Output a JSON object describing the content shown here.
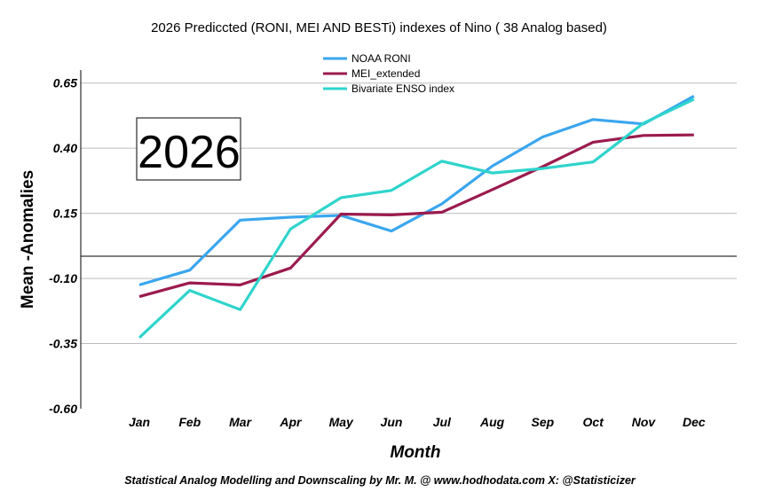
{
  "chart_data": {
    "type": "line",
    "title": "2026 Prediccted (RONI, MEI AND BESTi) indexes of Nino ( 38 Analog based)",
    "xlabel": "Month",
    "ylabel": "Mean -Anomalies",
    "categories": [
      "Jan",
      "Feb",
      "Mar",
      "Apr",
      "May",
      "Jun",
      "Jul",
      "Aug",
      "Sep",
      "Oct",
      "Nov",
      "Dec"
    ],
    "ylim": [
      -0.6,
      0.7
    ],
    "yticks": [
      "0.65",
      "0.40",
      "0.15",
      "-0.10",
      "-0.35",
      "-0.60"
    ],
    "grid": true,
    "reference_line": 0.0,
    "legend_position": "top-center",
    "annotation": "2026",
    "series": [
      {
        "name": "NOAA RONI",
        "color": "#3aa6ee",
        "values": [
          -0.125,
          -0.068,
          0.124,
          0.135,
          0.142,
          0.082,
          0.186,
          0.331,
          0.443,
          0.51,
          0.493,
          0.6
        ]
      },
      {
        "name": "MEI_extended",
        "color": "#9b1b4e",
        "values": [
          -0.17,
          -0.117,
          -0.125,
          -0.06,
          0.147,
          0.144,
          0.154,
          0.241,
          0.329,
          0.423,
          0.449,
          0.451
        ]
      },
      {
        "name": "Bivariate ENSO index",
        "color": "#2fd4cc",
        "values": [
          -0.327,
          -0.146,
          -0.22,
          0.09,
          0.21,
          0.238,
          0.35,
          0.305,
          0.322,
          0.347,
          0.496,
          0.588
        ]
      }
    ]
  },
  "footer": "Statistical Analog Modelling and Downscaling by Mr. M. @ www.hodhodata.com X: @Statisticizer"
}
